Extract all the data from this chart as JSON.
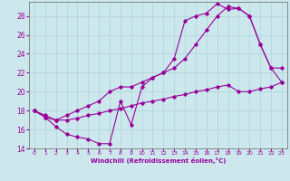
{
  "xlabel": "Windchill (Refroidissement éolien,°C)",
  "bg_color": "#cce8ed",
  "grid_color": "#aad4da",
  "line_color": "#990099",
  "xlim": [
    -0.5,
    23.5
  ],
  "ylim": [
    14,
    29.5
  ],
  "xticks": [
    0,
    1,
    2,
    3,
    4,
    5,
    6,
    7,
    8,
    9,
    10,
    11,
    12,
    13,
    14,
    15,
    16,
    17,
    18,
    19,
    20,
    21,
    22,
    23
  ],
  "yticks": [
    14,
    16,
    18,
    20,
    22,
    24,
    26,
    28
  ],
  "line1_x": [
    0,
    1,
    2,
    3,
    4,
    5,
    6,
    7,
    8,
    9,
    10,
    11,
    12,
    13,
    14,
    15,
    16,
    17,
    18,
    19,
    20,
    21,
    22,
    23
  ],
  "line1_y": [
    18,
    17.3,
    16.3,
    15.5,
    15.2,
    15.0,
    14.5,
    14.5,
    19.0,
    16.5,
    20.5,
    21.5,
    22.0,
    23.5,
    27.5,
    28.0,
    28.3,
    29.3,
    28.7,
    28.8,
    28.0,
    25.0,
    22.5,
    22.5
  ],
  "line2_x": [
    0,
    1,
    2,
    3,
    4,
    5,
    6,
    7,
    8,
    9,
    10,
    11,
    12,
    13,
    14,
    15,
    16,
    17,
    18,
    19,
    20,
    21,
    22,
    23
  ],
  "line2_y": [
    18,
    17.5,
    17.0,
    17.5,
    18.0,
    18.5,
    19.0,
    20.0,
    20.5,
    20.5,
    21.0,
    21.5,
    22.0,
    22.5,
    23.5,
    25.0,
    26.5,
    28.0,
    29.0,
    28.8,
    28.0,
    25.0,
    22.5,
    21.0
  ],
  "line3_x": [
    0,
    1,
    2,
    3,
    4,
    5,
    6,
    7,
    8,
    9,
    10,
    11,
    12,
    13,
    14,
    15,
    16,
    17,
    18,
    19,
    20,
    21,
    22,
    23
  ],
  "line3_y": [
    18,
    17.3,
    17.0,
    17.0,
    17.2,
    17.5,
    17.7,
    18.0,
    18.2,
    18.5,
    18.8,
    19.0,
    19.2,
    19.5,
    19.7,
    20.0,
    20.2,
    20.5,
    20.7,
    20.0,
    20.0,
    20.3,
    20.5,
    21.0
  ]
}
